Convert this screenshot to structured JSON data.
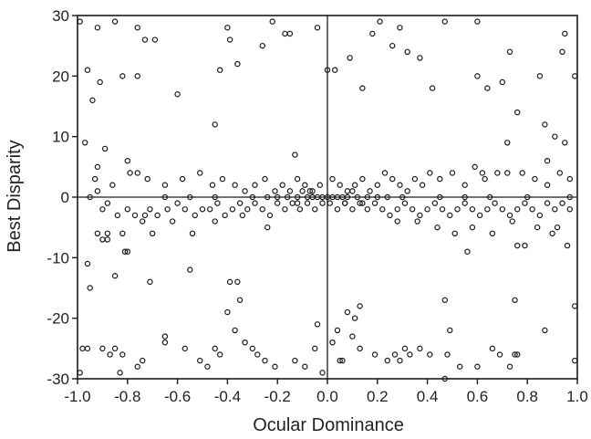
{
  "chart_data": {
    "type": "scatter",
    "title": "",
    "xlabel": "Ocular Dominance",
    "ylabel": "Best Disparity",
    "xlim": [
      -1.0,
      1.0
    ],
    "ylim": [
      -30,
      30
    ],
    "xticks": [
      -1.0,
      -0.8,
      -0.6,
      -0.4,
      -0.2,
      0.0,
      0.2,
      0.4,
      0.6,
      0.8,
      1.0
    ],
    "xtick_labels": [
      "-1.0",
      "-0.8",
      "-0.6",
      "-0.4",
      "-0.2",
      "0.0",
      "0.2",
      "0.4",
      "0.6",
      "0.8",
      "1.0"
    ],
    "yticks": [
      -30,
      -20,
      -10,
      0,
      10,
      20,
      30
    ],
    "ytick_labels": [
      "-30",
      "-20",
      "-10",
      "0",
      "10",
      "20",
      "30"
    ],
    "reference_lines": {
      "x": 0,
      "y": 0
    },
    "grid": false,
    "marker": "open-circle",
    "series": [
      {
        "points": [
          [
            -0.99,
            29
          ],
          [
            -0.96,
            21
          ],
          [
            -0.94,
            16
          ],
          [
            -0.92,
            28
          ],
          [
            -0.91,
            19
          ],
          [
            -0.85,
            29
          ],
          [
            -0.82,
            20
          ],
          [
            -0.76,
            28
          ],
          [
            -0.73,
            26
          ],
          [
            -0.69,
            26
          ],
          [
            -0.76,
            20
          ],
          [
            -0.6,
            17
          ],
          [
            -0.45,
            12
          ],
          [
            -0.43,
            21
          ],
          [
            -0.4,
            28
          ],
          [
            -0.39,
            26
          ],
          [
            -0.36,
            22
          ],
          [
            -0.26,
            25
          ],
          [
            -0.22,
            29
          ],
          [
            -0.17,
            27
          ],
          [
            -0.15,
            27
          ],
          [
            -0.04,
            28
          ],
          [
            0.0,
            21
          ],
          [
            0.03,
            21
          ],
          [
            0.09,
            23
          ],
          [
            0.14,
            18
          ],
          [
            0.18,
            27
          ],
          [
            0.21,
            29
          ],
          [
            0.26,
            25
          ],
          [
            0.29,
            28
          ],
          [
            0.32,
            24
          ],
          [
            0.37,
            23
          ],
          [
            0.42,
            18
          ],
          [
            0.47,
            29
          ],
          [
            0.6,
            29
          ],
          [
            0.6,
            20
          ],
          [
            0.64,
            18
          ],
          [
            0.7,
            19
          ],
          [
            0.73,
            24
          ],
          [
            0.76,
            14
          ],
          [
            0.85,
            20
          ],
          [
            0.87,
            12
          ],
          [
            0.94,
            24
          ],
          [
            0.95,
            27
          ],
          [
            0.99,
            20
          ],
          [
            -0.97,
            9
          ],
          [
            -0.92,
            5
          ],
          [
            -0.89,
            8
          ],
          [
            -0.8,
            6
          ],
          [
            -0.76,
            4
          ],
          [
            -0.13,
            7
          ],
          [
            0.62,
            4
          ],
          [
            0.72,
            9
          ],
          [
            0.88,
            6
          ],
          [
            0.91,
            10
          ],
          [
            0.95,
            9
          ],
          [
            -0.99,
            -29
          ],
          [
            -0.98,
            -25
          ],
          [
            -0.96,
            -25
          ],
          [
            -0.9,
            -25
          ],
          [
            -0.87,
            -26
          ],
          [
            -0.85,
            -25
          ],
          [
            -0.83,
            -29
          ],
          [
            -0.82,
            -26
          ],
          [
            -0.76,
            -28
          ],
          [
            -0.74,
            -27
          ],
          [
            -0.65,
            -23
          ],
          [
            -0.65,
            -24
          ],
          [
            -0.57,
            -25
          ],
          [
            -0.51,
            -27
          ],
          [
            -0.48,
            -28
          ],
          [
            -0.45,
            -25
          ],
          [
            -0.43,
            -26
          ],
          [
            -0.37,
            -22
          ],
          [
            -0.33,
            -24
          ],
          [
            -0.3,
            -25
          ],
          [
            -0.28,
            -26
          ],
          [
            -0.25,
            -27
          ],
          [
            -0.21,
            -28
          ],
          [
            -0.13,
            -27
          ],
          [
            -0.09,
            -28
          ],
          [
            -0.05,
            -25
          ],
          [
            -0.02,
            -29
          ],
          [
            0.02,
            -24
          ],
          [
            0.05,
            -27
          ],
          [
            0.06,
            -27
          ],
          [
            0.1,
            -23
          ],
          [
            0.13,
            -25
          ],
          [
            0.19,
            -26
          ],
          [
            0.24,
            -27
          ],
          [
            0.27,
            -26
          ],
          [
            0.29,
            -27
          ],
          [
            0.31,
            -25
          ],
          [
            0.33,
            -26
          ],
          [
            0.37,
            -25
          ],
          [
            0.41,
            -26
          ],
          [
            0.47,
            -30
          ],
          [
            0.48,
            -26
          ],
          [
            0.53,
            -28
          ],
          [
            0.6,
            -28
          ],
          [
            0.66,
            -25
          ],
          [
            0.69,
            -26
          ],
          [
            0.73,
            -28
          ],
          [
            0.75,
            -26
          ],
          [
            0.76,
            -26
          ],
          [
            0.87,
            -22
          ],
          [
            0.99,
            -27
          ],
          [
            -0.95,
            -15
          ],
          [
            -0.96,
            -11
          ],
          [
            -0.92,
            -6
          ],
          [
            -0.88,
            -6
          ],
          [
            -0.85,
            -13
          ],
          [
            -0.8,
            -9
          ],
          [
            -0.71,
            -14
          ],
          [
            -0.55,
            -12
          ],
          [
            -0.4,
            -19
          ],
          [
            -0.39,
            -14
          ],
          [
            -0.36,
            -14
          ],
          [
            -0.35,
            -17
          ],
          [
            -0.04,
            -21
          ],
          [
            0.04,
            -22
          ],
          [
            0.08,
            -19
          ],
          [
            0.11,
            -20
          ],
          [
            0.13,
            -18
          ],
          [
            0.47,
            -17
          ],
          [
            0.49,
            -22
          ],
          [
            0.75,
            -17
          ],
          [
            0.99,
            -18
          ],
          [
            -0.9,
            -7
          ],
          [
            -0.88,
            -7
          ],
          [
            -0.81,
            -9
          ],
          [
            -0.7,
            -6
          ],
          [
            0.56,
            -9
          ],
          [
            0.76,
            -8
          ],
          [
            0.79,
            -8
          ],
          [
            0.9,
            -6
          ],
          [
            0.96,
            -8
          ],
          [
            -0.95,
            0
          ],
          [
            -0.92,
            1
          ],
          [
            -0.9,
            -2
          ],
          [
            -0.88,
            -1
          ],
          [
            -0.84,
            -3
          ],
          [
            -0.8,
            -2
          ],
          [
            -0.77,
            -3
          ],
          [
            -0.74,
            -4
          ],
          [
            -0.71,
            -2
          ],
          [
            -0.68,
            -3
          ],
          [
            -0.64,
            -2
          ],
          [
            -0.6,
            -1
          ],
          [
            -0.57,
            -2
          ],
          [
            -0.53,
            -3
          ],
          [
            -0.5,
            -2
          ],
          [
            -0.47,
            -2
          ],
          [
            -0.44,
            -1
          ],
          [
            -0.41,
            -3
          ],
          [
            -0.38,
            -2
          ],
          [
            -0.35,
            -1
          ],
          [
            -0.32,
            -2
          ],
          [
            -0.29,
            -1
          ],
          [
            -0.26,
            -2
          ],
          [
            -0.23,
            -3
          ],
          [
            -0.2,
            -1
          ],
          [
            -0.17,
            -2
          ],
          [
            -0.14,
            -1
          ],
          [
            -0.11,
            -2
          ],
          [
            -0.08,
            -1
          ],
          [
            -0.05,
            -2
          ],
          [
            -0.02,
            -1
          ],
          [
            0.01,
            -1
          ],
          [
            0.04,
            -2
          ],
          [
            0.07,
            -1
          ],
          [
            0.1,
            -2
          ],
          [
            0.13,
            -1
          ],
          [
            0.16,
            -2
          ],
          [
            0.19,
            -1
          ],
          [
            0.22,
            -2
          ],
          [
            0.25,
            -3
          ],
          [
            0.28,
            -2
          ],
          [
            0.31,
            -1
          ],
          [
            0.34,
            -2
          ],
          [
            0.37,
            -3
          ],
          [
            0.4,
            -2
          ],
          [
            0.43,
            -1
          ],
          [
            0.46,
            -2
          ],
          [
            0.49,
            -3
          ],
          [
            0.52,
            -2
          ],
          [
            0.55,
            -1
          ],
          [
            0.58,
            -2
          ],
          [
            0.61,
            -3
          ],
          [
            0.64,
            -2
          ],
          [
            0.67,
            -1
          ],
          [
            0.7,
            -2
          ],
          [
            0.73,
            -3
          ],
          [
            0.76,
            -2
          ],
          [
            0.79,
            -1
          ],
          [
            0.82,
            -2
          ],
          [
            0.85,
            -3
          ],
          [
            0.88,
            -1
          ],
          [
            0.91,
            -2
          ],
          [
            0.94,
            -1
          ],
          [
            0.97,
            -2
          ],
          [
            -0.93,
            3
          ],
          [
            -0.86,
            2
          ],
          [
            -0.79,
            4
          ],
          [
            -0.72,
            3
          ],
          [
            -0.65,
            2
          ],
          [
            -0.58,
            3
          ],
          [
            -0.51,
            4
          ],
          [
            -0.46,
            2
          ],
          [
            -0.42,
            3
          ],
          [
            -0.37,
            2
          ],
          [
            -0.33,
            1
          ],
          [
            -0.29,
            2
          ],
          [
            -0.25,
            3
          ],
          [
            -0.21,
            1
          ],
          [
            -0.18,
            2
          ],
          [
            -0.15,
            1
          ],
          [
            -0.12,
            3
          ],
          [
            -0.09,
            2
          ],
          [
            -0.06,
            1
          ],
          [
            -0.03,
            2
          ],
          [
            0.02,
            3
          ],
          [
            0.05,
            2
          ],
          [
            0.08,
            1
          ],
          [
            0.11,
            2
          ],
          [
            0.14,
            3
          ],
          [
            0.17,
            1
          ],
          [
            0.2,
            2
          ],
          [
            0.23,
            4
          ],
          [
            0.26,
            3
          ],
          [
            0.29,
            2
          ],
          [
            0.32,
            1
          ],
          [
            0.35,
            3
          ],
          [
            0.38,
            2
          ],
          [
            0.41,
            4
          ],
          [
            0.45,
            3
          ],
          [
            0.5,
            4
          ],
          [
            0.55,
            2
          ],
          [
            0.59,
            5
          ],
          [
            0.63,
            3
          ],
          [
            0.68,
            4
          ],
          [
            0.72,
            4
          ],
          [
            0.78,
            4
          ],
          [
            0.83,
            3
          ],
          [
            0.88,
            2
          ],
          [
            0.93,
            4
          ],
          [
            0.97,
            3
          ],
          [
            -0.82,
            -6
          ],
          [
            -0.73,
            -3
          ],
          [
            -0.62,
            -4
          ],
          [
            -0.54,
            -6
          ],
          [
            -0.45,
            -4
          ],
          [
            -0.34,
            -3
          ],
          [
            -0.24,
            -5
          ],
          [
            0.28,
            -4
          ],
          [
            0.36,
            -4
          ],
          [
            0.44,
            -5
          ],
          [
            0.51,
            -6
          ],
          [
            0.58,
            -5
          ],
          [
            0.66,
            -6
          ],
          [
            0.74,
            -4
          ],
          [
            0.84,
            -5
          ],
          [
            0.92,
            -5
          ],
          [
            -0.3,
            0
          ],
          [
            -0.24,
            0
          ],
          [
            -0.2,
            0
          ],
          [
            -0.16,
            0
          ],
          [
            -0.12,
            0
          ],
          [
            -0.08,
            0
          ],
          [
            -0.06,
            0
          ],
          [
            -0.04,
            0
          ],
          [
            -0.02,
            0
          ],
          [
            0.0,
            0
          ],
          [
            0.02,
            0
          ],
          [
            0.04,
            0
          ],
          [
            0.06,
            0
          ],
          [
            0.08,
            0
          ],
          [
            0.12,
            0
          ],
          [
            0.16,
            0
          ],
          [
            0.2,
            0
          ],
          [
            0.24,
            0
          ],
          [
            0.3,
            0
          ],
          [
            -0.1,
            1
          ],
          [
            -0.07,
            1
          ],
          [
            0.07,
            -1
          ],
          [
            0.1,
            1
          ],
          [
            -0.12,
            -1
          ],
          [
            0.14,
            -1
          ],
          [
            -0.45,
            0
          ],
          [
            -0.55,
            0
          ],
          [
            -0.65,
            0
          ],
          [
            0.45,
            0
          ],
          [
            0.55,
            0
          ],
          [
            0.65,
            0
          ],
          [
            0.8,
            0
          ],
          [
            0.97,
            0
          ]
        ]
      }
    ]
  }
}
